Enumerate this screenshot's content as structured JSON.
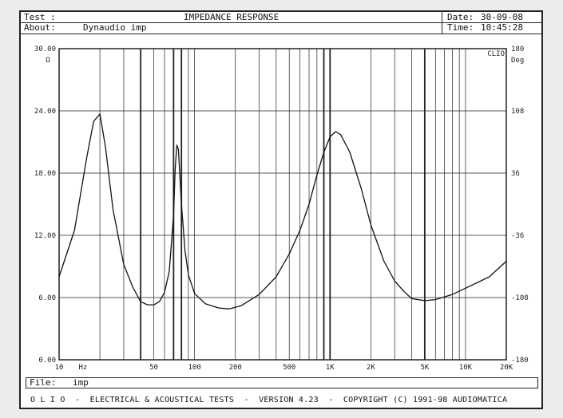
{
  "header": {
    "test_label": "Test :",
    "title": "IMPEDANCE RESPONSE",
    "about_label": "About:",
    "about_value": "Dynaudio imp",
    "date_label": "Date:",
    "date_value": "30-09-08",
    "time_label": "Time:",
    "time_value": "10:45:28"
  },
  "footer": {
    "file_label": "File:",
    "file_value": "imp",
    "credits": "O L I O  -  ELECTRICAL & ACOUSTICAL TESTS  -  VERSION 4.23  -  COPYRIGHT (C) 1991-98 AUDIOMATICA"
  },
  "chart_data": {
    "type": "line",
    "x_scale": "log",
    "xlim": [
      10,
      20000
    ],
    "ylim": [
      0,
      30
    ],
    "y2lim": [
      -180,
      180
    ],
    "ylabel_unit": "Ω",
    "y2label": "Deg",
    "y2_corner_label": "CLIO",
    "y_ticks": [
      {
        "v": 30,
        "label": "30.00"
      },
      {
        "v": 24,
        "label": "24.00"
      },
      {
        "v": 18,
        "label": "18.00"
      },
      {
        "v": 12,
        "label": "12.00"
      },
      {
        "v": 6,
        "label": "6.00"
      },
      {
        "v": 0,
        "label": "0.00"
      }
    ],
    "y2_ticks": [
      {
        "v": 180,
        "label": "180"
      },
      {
        "v": 108,
        "label": "108"
      },
      {
        "v": 36,
        "label": "36"
      },
      {
        "v": -36,
        "label": "-36"
      },
      {
        "v": -108,
        "label": "-108"
      },
      {
        "v": -180,
        "label": "-180"
      }
    ],
    "x_tick_labels": [
      {
        "v": 10,
        "label": "10"
      },
      {
        "v": 15,
        "label": "Hz"
      },
      {
        "v": 50,
        "label": "50"
      },
      {
        "v": 100,
        "label": "100"
      },
      {
        "v": 200,
        "label": "200"
      },
      {
        "v": 500,
        "label": "500"
      },
      {
        "v": 1000,
        "label": "1K"
      },
      {
        "v": 2000,
        "label": "2K"
      },
      {
        "v": 5000,
        "label": "5K"
      },
      {
        "v": 10000,
        "label": "10K"
      },
      {
        "v": 20000,
        "label": "20K"
      }
    ],
    "grid_x": [
      20,
      30,
      40,
      50,
      60,
      70,
      80,
      90,
      100,
      200,
      300,
      400,
      500,
      600,
      700,
      800,
      900,
      1000,
      2000,
      3000,
      4000,
      5000,
      6000,
      7000,
      8000,
      9000,
      10000
    ],
    "grid_x_bold": [
      40,
      70,
      80,
      900,
      1000,
      5000
    ],
    "grid_y": [
      6,
      12,
      18,
      24
    ],
    "series": [
      {
        "x": [
          10,
          13,
          16,
          18,
          20,
          22,
          25,
          30,
          35,
          40,
          45,
          50,
          55,
          60,
          65,
          70,
          72,
          74,
          76,
          80,
          85,
          90,
          100,
          120,
          150,
          180,
          220,
          300,
          400,
          500,
          600,
          700,
          800,
          900,
          1000,
          1100,
          1200,
          1400,
          1700,
          2000,
          2500,
          3000,
          3500,
          4000,
          5000,
          6000,
          8000,
          10000,
          15000,
          20000
        ],
        "y": [
          8,
          12.5,
          19.5,
          23,
          23.7,
          20.5,
          14.5,
          9.2,
          7,
          5.6,
          5.3,
          5.3,
          5.6,
          6.5,
          8.5,
          14,
          18.5,
          20.7,
          20.3,
          15,
          10.5,
          8.2,
          6.4,
          5.4,
          5,
          4.9,
          5.2,
          6.3,
          8,
          10.2,
          12.5,
          15,
          17.8,
          20,
          21.5,
          22,
          21.7,
          20,
          16.5,
          13,
          9.5,
          7.6,
          6.6,
          5.9,
          5.7,
          5.8,
          6.3,
          6.9,
          8,
          9.5
        ]
      }
    ]
  }
}
